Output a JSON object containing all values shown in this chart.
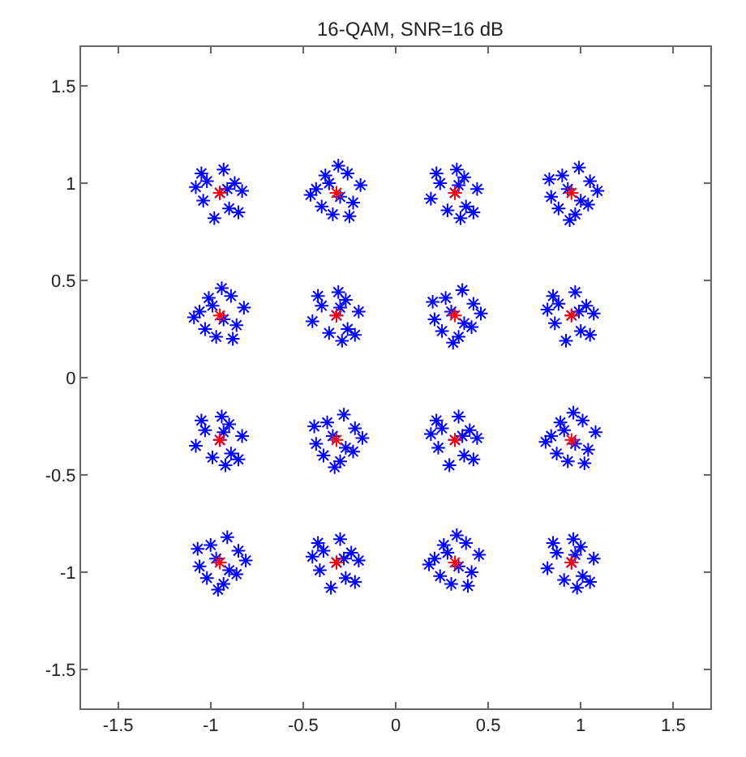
{
  "chart_data": {
    "type": "scatter",
    "title": "16-QAM, SNR=16 dB",
    "xlim": [
      -1.7,
      1.7
    ],
    "ylim": [
      -1.7,
      1.7
    ],
    "xticks": [
      -1.5,
      -1,
      -0.5,
      0,
      0.5,
      1,
      1.5
    ],
    "yticks": [
      -1.5,
      -1,
      -0.5,
      0,
      0.5,
      1,
      1.5
    ],
    "grid": false,
    "series": [
      {
        "color": "#0000ff",
        "marker": "cross",
        "x": [
          -0.95,
          -0.87,
          -1.02,
          -0.9,
          -1.04,
          -0.83,
          -1.08,
          -0.93,
          -0.98,
          -0.85,
          -1.05,
          -0.91,
          -0.3,
          -0.38,
          -0.23,
          -0.43,
          -0.26,
          -0.34,
          -0.19,
          -0.4,
          -0.31,
          -0.46,
          -0.25,
          -0.36,
          0.32,
          0.37,
          0.38,
          0.24,
          0.28,
          0.33,
          0.35,
          0.44,
          0.19,
          0.22,
          0.42,
          0.34,
          0.93,
          1.04,
          0.9,
          0.97,
          1.05,
          0.84,
          0.99,
          0.88,
          1.09,
          0.94,
          0.83,
          1.0,
          -0.93,
          -1.01,
          -0.86,
          -1.06,
          -0.89,
          -0.97,
          -0.82,
          -1.03,
          -0.94,
          -1.09,
          -0.88,
          -0.99,
          -0.32,
          -0.27,
          -0.26,
          -0.4,
          -0.36,
          -0.31,
          -0.29,
          -0.2,
          -0.45,
          -0.42,
          -0.22,
          -0.3,
          0.3,
          0.41,
          0.27,
          0.34,
          0.42,
          0.21,
          0.36,
          0.25,
          0.46,
          0.31,
          0.2,
          0.37,
          0.95,
          1.03,
          0.88,
          1.0,
          0.86,
          1.07,
          0.82,
          0.97,
          0.92,
          1.05,
          0.85,
          0.99,
          -0.95,
          -0.9,
          -0.89,
          -1.03,
          -0.99,
          -0.94,
          -0.92,
          -0.83,
          -1.08,
          -1.05,
          -0.85,
          -0.93,
          -0.34,
          -0.23,
          -0.37,
          -0.3,
          -0.22,
          -0.43,
          -0.28,
          -0.39,
          -0.18,
          -0.33,
          -0.44,
          -0.27,
          0.32,
          0.4,
          0.25,
          0.37,
          0.23,
          0.44,
          0.19,
          0.34,
          0.29,
          0.42,
          0.22,
          0.36,
          0.97,
          0.89,
          1.04,
          0.84,
          1.01,
          0.93,
          1.08,
          0.87,
          0.96,
          0.81,
          1.02,
          0.91,
          -0.97,
          -0.86,
          -1.0,
          -0.93,
          -0.85,
          -1.06,
          -0.91,
          -1.02,
          -0.81,
          -0.96,
          -1.07,
          -0.9,
          -0.32,
          -0.24,
          -0.39,
          -0.27,
          -0.41,
          -0.2,
          -0.45,
          -0.3,
          -0.35,
          -0.22,
          -0.42,
          -0.28,
          0.34,
          0.26,
          0.41,
          0.21,
          0.38,
          0.3,
          0.45,
          0.24,
          0.33,
          0.18,
          0.39,
          0.28,
          0.95,
          1.0,
          1.01,
          0.87,
          0.91,
          0.96,
          0.98,
          1.07,
          0.82,
          0.85,
          1.05,
          0.97
        ],
        "values": [
          0.95,
          1.0,
          1.01,
          0.87,
          0.91,
          0.96,
          0.98,
          1.07,
          0.82,
          0.85,
          1.05,
          0.97,
          0.93,
          1.04,
          0.9,
          0.97,
          1.05,
          0.84,
          0.99,
          0.88,
          1.09,
          0.94,
          0.83,
          1.0,
          0.95,
          1.03,
          0.88,
          1.0,
          0.86,
          1.07,
          0.82,
          0.97,
          0.92,
          1.05,
          0.85,
          0.99,
          0.97,
          0.89,
          1.04,
          0.84,
          1.01,
          0.93,
          1.08,
          0.87,
          0.96,
          0.81,
          1.02,
          0.91,
          0.3,
          0.41,
          0.27,
          0.34,
          0.42,
          0.21,
          0.36,
          0.25,
          0.46,
          0.31,
          0.2,
          0.37,
          0.32,
          0.4,
          0.25,
          0.37,
          0.23,
          0.44,
          0.19,
          0.34,
          0.29,
          0.42,
          0.22,
          0.36,
          0.34,
          0.26,
          0.41,
          0.21,
          0.38,
          0.3,
          0.45,
          0.24,
          0.33,
          0.18,
          0.39,
          0.28,
          0.32,
          0.37,
          0.38,
          0.24,
          0.28,
          0.33,
          0.35,
          0.44,
          0.19,
          0.22,
          0.42,
          0.34,
          -0.32,
          -0.24,
          -0.39,
          -0.27,
          -0.41,
          -0.2,
          -0.45,
          -0.3,
          -0.35,
          -0.22,
          -0.42,
          -0.28,
          -0.3,
          -0.38,
          -0.23,
          -0.43,
          -0.26,
          -0.34,
          -0.19,
          -0.4,
          -0.31,
          -0.46,
          -0.25,
          -0.36,
          -0.32,
          -0.27,
          -0.26,
          -0.4,
          -0.36,
          -0.31,
          -0.29,
          -0.2,
          -0.45,
          -0.42,
          -0.22,
          -0.3,
          -0.34,
          -0.23,
          -0.37,
          -0.3,
          -0.22,
          -0.43,
          -0.28,
          -0.39,
          -0.18,
          -0.33,
          -0.44,
          -0.27,
          -0.93,
          -1.01,
          -0.86,
          -1.06,
          -0.89,
          -0.97,
          -0.82,
          -1.03,
          -0.94,
          -1.09,
          -0.88,
          -0.99,
          -0.95,
          -0.9,
          -0.89,
          -1.03,
          -0.99,
          -0.94,
          -0.92,
          -0.83,
          -1.08,
          -1.05,
          -0.85,
          -0.93,
          -0.97,
          -0.86,
          -1.0,
          -0.93,
          -0.85,
          -1.06,
          -0.91,
          -1.02,
          -0.81,
          -0.96,
          -1.07,
          -0.9,
          -0.95,
          -0.87,
          -1.02,
          -0.9,
          -1.04,
          -0.83,
          -1.08,
          -0.93,
          -0.98,
          -0.85,
          -1.05,
          -0.91
        ]
      },
      {
        "color": "#ff0000",
        "marker": "cross",
        "x": [
          -0.95,
          -0.32,
          0.32,
          0.95,
          -0.95,
          -0.32,
          0.32,
          0.95,
          -0.95,
          -0.32,
          0.32,
          0.95,
          -0.95,
          -0.32,
          0.32,
          0.95
        ],
        "values": [
          0.95,
          0.95,
          0.95,
          0.95,
          0.32,
          0.32,
          0.32,
          0.32,
          -0.32,
          -0.32,
          -0.32,
          -0.32,
          -0.95,
          -0.95,
          -0.95,
          -0.95
        ]
      }
    ]
  }
}
